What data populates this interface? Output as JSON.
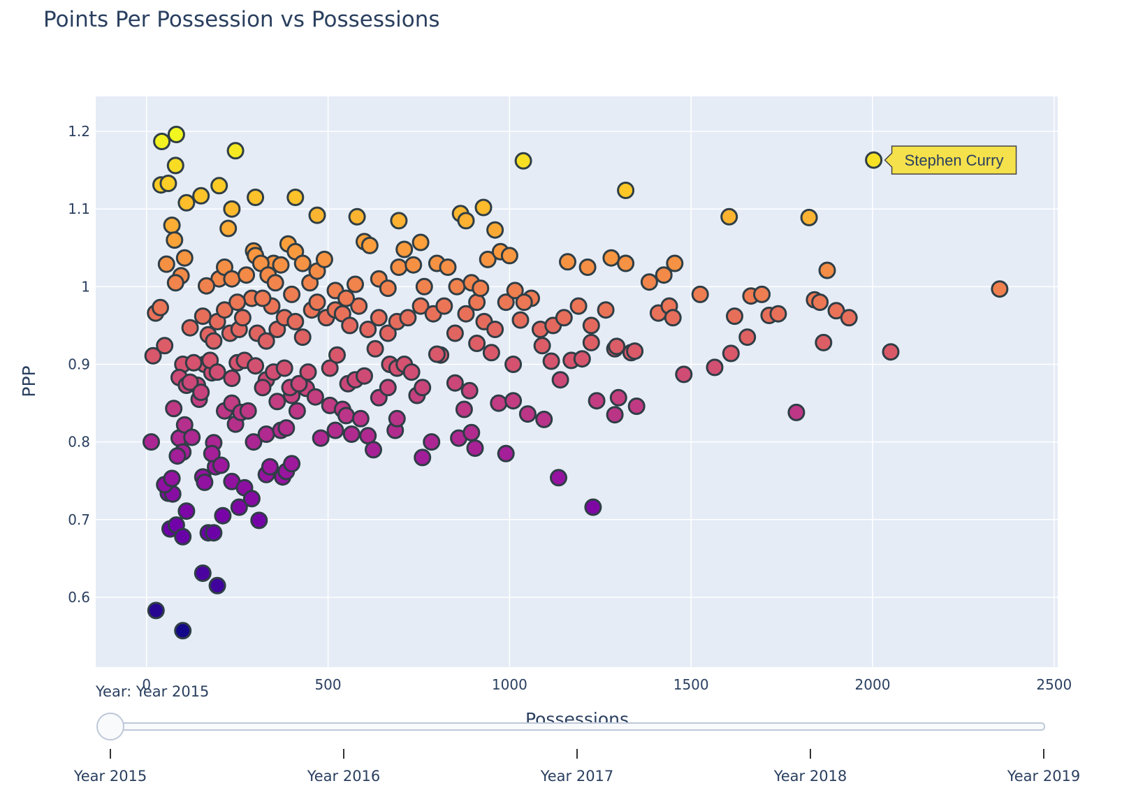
{
  "chart_data": {
    "type": "scatter",
    "title": "Points Per Possession vs Possessions",
    "xlabel": "Possessions",
    "ylabel": "PPP",
    "xlim": [
      -140,
      2510
    ],
    "ylim": [
      0.51,
      1.245
    ],
    "x_ticks": [
      0,
      500,
      1000,
      1500,
      2000,
      2500
    ],
    "y_ticks": [
      0.6,
      0.7,
      0.8,
      0.9,
      1,
      1.1,
      1.2
    ],
    "y_tick_labels": [
      "0.6",
      "0.7",
      "0.8",
      "0.9",
      "1",
      "1.1",
      "1.2"
    ],
    "colorscale": [
      "#0d0887",
      "#46039f",
      "#7201a8",
      "#9c179e",
      "#bd3786",
      "#d8576b",
      "#ed7953",
      "#fb9f3a",
      "#fdca26",
      "#f0f921"
    ],
    "color_range": [
      0.55,
      1.2
    ],
    "marker_line_color": "#2f3e46",
    "plot_background": "#e5ecf6",
    "grid": true,
    "hover": {
      "x": 2003,
      "y": 1.163,
      "label": "Stephen Curry",
      "color": "#f5e14b"
    },
    "points": [
      [
        26,
        0.583
      ],
      [
        100,
        0.557
      ],
      [
        195,
        0.615
      ],
      [
        155,
        0.631
      ],
      [
        13,
        0.8
      ],
      [
        18,
        0.911
      ],
      [
        25,
        0.966
      ],
      [
        38,
        0.973
      ],
      [
        50,
        0.924
      ],
      [
        42,
        1.187
      ],
      [
        82,
        1.196
      ],
      [
        80,
        1.156
      ],
      [
        40,
        1.131
      ],
      [
        60,
        1.133
      ],
      [
        70,
        1.079
      ],
      [
        110,
        1.108
      ],
      [
        77,
        1.06
      ],
      [
        55,
        1.029
      ],
      [
        95,
        1.014
      ],
      [
        80,
        1.005
      ],
      [
        105,
        1.037
      ],
      [
        150,
        1.117
      ],
      [
        200,
        1.13
      ],
      [
        245,
        1.175
      ],
      [
        235,
        1.1
      ],
      [
        225,
        1.075
      ],
      [
        300,
        1.115
      ],
      [
        295,
        1.046
      ],
      [
        350,
        1.03
      ],
      [
        410,
        1.115
      ],
      [
        470,
        1.092
      ],
      [
        580,
        1.09
      ],
      [
        695,
        1.085
      ],
      [
        755,
        1.057
      ],
      [
        865,
        1.094
      ],
      [
        880,
        1.085
      ],
      [
        928,
        1.102
      ],
      [
        960,
        1.073
      ],
      [
        1038,
        1.162
      ],
      [
        1320,
        1.124
      ],
      [
        1605,
        1.09
      ],
      [
        1825,
        1.089
      ],
      [
        2003,
        1.163
      ],
      [
        60,
        0.734
      ],
      [
        72,
        0.733
      ],
      [
        50,
        0.745
      ],
      [
        70,
        0.753
      ],
      [
        65,
        0.688
      ],
      [
        82,
        0.693
      ],
      [
        100,
        0.678
      ],
      [
        110,
        0.711
      ],
      [
        155,
        0.755
      ],
      [
        160,
        0.748
      ],
      [
        170,
        0.683
      ],
      [
        185,
        0.683
      ],
      [
        190,
        0.768
      ],
      [
        210,
        0.705
      ],
      [
        255,
        0.716
      ],
      [
        235,
        0.749
      ],
      [
        270,
        0.741
      ],
      [
        290,
        0.727
      ],
      [
        310,
        0.699
      ],
      [
        330,
        0.758
      ],
      [
        340,
        0.768
      ],
      [
        375,
        0.755
      ],
      [
        385,
        0.762
      ],
      [
        400,
        0.772
      ],
      [
        1135,
        0.754
      ],
      [
        1230,
        0.716
      ],
      [
        75,
        0.843
      ],
      [
        90,
        0.805
      ],
      [
        105,
        0.822
      ],
      [
        100,
        0.787
      ],
      [
        85,
        0.782
      ],
      [
        125,
        0.806
      ],
      [
        140,
        0.873
      ],
      [
        145,
        0.855
      ],
      [
        160,
        0.9
      ],
      [
        180,
        0.889
      ],
      [
        185,
        0.799
      ],
      [
        180,
        0.785
      ],
      [
        205,
        0.77
      ],
      [
        215,
        0.84
      ],
      [
        235,
        0.85
      ],
      [
        245,
        0.823
      ],
      [
        260,
        0.838
      ],
      [
        280,
        0.84
      ],
      [
        235,
        0.882
      ],
      [
        295,
        0.8
      ],
      [
        330,
        0.81
      ],
      [
        360,
        0.852
      ],
      [
        370,
        0.815
      ],
      [
        385,
        0.818
      ],
      [
        400,
        0.86
      ],
      [
        415,
        0.84
      ],
      [
        440,
        0.869
      ],
      [
        480,
        0.805
      ],
      [
        505,
        0.847
      ],
      [
        520,
        0.815
      ],
      [
        540,
        0.842
      ],
      [
        550,
        0.834
      ],
      [
        565,
        0.81
      ],
      [
        590,
        0.83
      ],
      [
        610,
        0.808
      ],
      [
        625,
        0.79
      ],
      [
        640,
        0.857
      ],
      [
        665,
        0.87
      ],
      [
        685,
        0.815
      ],
      [
        690,
        0.83
      ],
      [
        745,
        0.86
      ],
      [
        760,
        0.78
      ],
      [
        785,
        0.8
      ],
      [
        810,
        0.912
      ],
      [
        850,
        0.876
      ],
      [
        860,
        0.805
      ],
      [
        875,
        0.842
      ],
      [
        890,
        0.866
      ],
      [
        895,
        0.812
      ],
      [
        905,
        0.792
      ],
      [
        970,
        0.85
      ],
      [
        990,
        0.785
      ],
      [
        1010,
        0.853
      ],
      [
        1050,
        0.836
      ],
      [
        1095,
        0.829
      ],
      [
        1240,
        0.853
      ],
      [
        1290,
        0.835
      ],
      [
        1300,
        0.857
      ],
      [
        1350,
        0.846
      ],
      [
        1790,
        0.838
      ],
      [
        100,
        0.9
      ],
      [
        90,
        0.883
      ],
      [
        110,
        0.873
      ],
      [
        130,
        0.902
      ],
      [
        120,
        0.877
      ],
      [
        150,
        0.864
      ],
      [
        175,
        0.905
      ],
      [
        195,
        0.89
      ],
      [
        250,
        0.902
      ],
      [
        270,
        0.905
      ],
      [
        300,
        0.898
      ],
      [
        330,
        0.88
      ],
      [
        320,
        0.87
      ],
      [
        350,
        0.89
      ],
      [
        380,
        0.895
      ],
      [
        395,
        0.87
      ],
      [
        420,
        0.875
      ],
      [
        445,
        0.89
      ],
      [
        465,
        0.858
      ],
      [
        505,
        0.895
      ],
      [
        525,
        0.912
      ],
      [
        555,
        0.875
      ],
      [
        575,
        0.88
      ],
      [
        600,
        0.885
      ],
      [
        630,
        0.92
      ],
      [
        670,
        0.9
      ],
      [
        690,
        0.895
      ],
      [
        710,
        0.9
      ],
      [
        730,
        0.89
      ],
      [
        760,
        0.87
      ],
      [
        800,
        0.913
      ],
      [
        910,
        0.927
      ],
      [
        950,
        0.915
      ],
      [
        1010,
        0.9
      ],
      [
        1090,
        0.924
      ],
      [
        1115,
        0.904
      ],
      [
        1140,
        0.88
      ],
      [
        1170,
        0.905
      ],
      [
        1200,
        0.907
      ],
      [
        1225,
        0.928
      ],
      [
        1290,
        0.92
      ],
      [
        1335,
        0.915
      ],
      [
        1480,
        0.887
      ],
      [
        1565,
        0.896
      ],
      [
        1610,
        0.914
      ],
      [
        1655,
        0.935
      ],
      [
        1865,
        0.928
      ],
      [
        2050,
        0.916
      ],
      [
        120,
        0.947
      ],
      [
        155,
        0.962
      ],
      [
        170,
        0.938
      ],
      [
        185,
        0.93
      ],
      [
        195,
        0.955
      ],
      [
        215,
        0.97
      ],
      [
        230,
        0.94
      ],
      [
        255,
        0.945
      ],
      [
        265,
        0.96
      ],
      [
        290,
        0.985
      ],
      [
        305,
        0.94
      ],
      [
        330,
        0.93
      ],
      [
        345,
        0.975
      ],
      [
        360,
        0.945
      ],
      [
        380,
        0.96
      ],
      [
        410,
        0.955
      ],
      [
        430,
        0.935
      ],
      [
        455,
        0.97
      ],
      [
        470,
        0.98
      ],
      [
        495,
        0.96
      ],
      [
        520,
        0.97
      ],
      [
        540,
        0.965
      ],
      [
        560,
        0.95
      ],
      [
        585,
        0.975
      ],
      [
        610,
        0.945
      ],
      [
        640,
        0.96
      ],
      [
        665,
        0.94
      ],
      [
        690,
        0.955
      ],
      [
        720,
        0.96
      ],
      [
        755,
        0.975
      ],
      [
        790,
        0.965
      ],
      [
        820,
        0.975
      ],
      [
        850,
        0.94
      ],
      [
        880,
        0.965
      ],
      [
        910,
        0.98
      ],
      [
        930,
        0.955
      ],
      [
        960,
        0.945
      ],
      [
        990,
        0.98
      ],
      [
        1030,
        0.957
      ],
      [
        1060,
        0.985
      ],
      [
        1085,
        0.945
      ],
      [
        1120,
        0.95
      ],
      [
        1150,
        0.96
      ],
      [
        1190,
        0.975
      ],
      [
        1225,
        0.95
      ],
      [
        1265,
        0.97
      ],
      [
        1295,
        0.923
      ],
      [
        1345,
        0.917
      ],
      [
        1410,
        0.966
      ],
      [
        1440,
        0.975
      ],
      [
        1450,
        0.96
      ],
      [
        1525,
        0.99
      ],
      [
        1620,
        0.962
      ],
      [
        1665,
        0.988
      ],
      [
        1695,
        0.99
      ],
      [
        1715,
        0.963
      ],
      [
        1740,
        0.965
      ],
      [
        1840,
        0.983
      ],
      [
        1855,
        0.98
      ],
      [
        1900,
        0.969
      ],
      [
        1935,
        0.96
      ],
      [
        2350,
        0.997
      ],
      [
        200,
        1.01
      ],
      [
        215,
        1.025
      ],
      [
        235,
        1.01
      ],
      [
        250,
        0.98
      ],
      [
        275,
        1.015
      ],
      [
        300,
        1.04
      ],
      [
        315,
        1.03
      ],
      [
        335,
        1.015
      ],
      [
        355,
        1.005
      ],
      [
        370,
        1.028
      ],
      [
        390,
        1.055
      ],
      [
        410,
        1.045
      ],
      [
        430,
        1.03
      ],
      [
        450,
        1.005
      ],
      [
        470,
        1.02
      ],
      [
        490,
        1.035
      ],
      [
        520,
        0.995
      ],
      [
        550,
        0.985
      ],
      [
        575,
        1.003
      ],
      [
        600,
        1.058
      ],
      [
        615,
        1.053
      ],
      [
        640,
        1.01
      ],
      [
        665,
        0.998
      ],
      [
        695,
        1.025
      ],
      [
        710,
        1.048
      ],
      [
        735,
        1.028
      ],
      [
        765,
        1.0
      ],
      [
        800,
        1.03
      ],
      [
        830,
        1.025
      ],
      [
        855,
        1.0
      ],
      [
        895,
        1.005
      ],
      [
        920,
        0.998
      ],
      [
        940,
        1.035
      ],
      [
        975,
        1.045
      ],
      [
        1000,
        1.04
      ],
      [
        1015,
        0.995
      ],
      [
        1040,
        0.98
      ],
      [
        1160,
        1.032
      ],
      [
        1215,
        1.025
      ],
      [
        1280,
        1.037
      ],
      [
        1320,
        1.03
      ],
      [
        1385,
        1.006
      ],
      [
        1425,
        1.015
      ],
      [
        1455,
        1.03
      ],
      [
        1875,
        1.021
      ],
      [
        165,
        1.001
      ],
      [
        320,
        0.985
      ],
      [
        400,
        0.99
      ]
    ]
  }
}
